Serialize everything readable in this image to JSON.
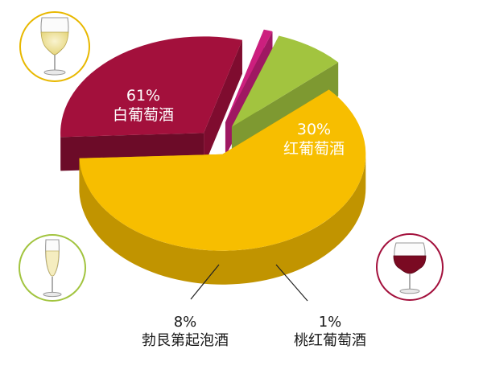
{
  "chart_data": {
    "type": "pie",
    "style": "3d-exploded",
    "slices": [
      {
        "label": "白葡萄酒",
        "value": 61,
        "display": "61%",
        "color": "#f7be00",
        "icon": "white-wine-glass-icon"
      },
      {
        "label": "红葡萄酒",
        "value": 30,
        "display": "30%",
        "color": "#a3103c",
        "icon": "red-wine-glass-icon"
      },
      {
        "label": "桃红葡萄酒",
        "value": 1,
        "display": "1%",
        "color": "#cc1f7e",
        "icon": null
      },
      {
        "label": "勃艮第起泡酒",
        "value": 8,
        "display": "8%",
        "color": "#a2c43f",
        "icon": "sparkling-wine-glass-icon"
      }
    ],
    "title": "",
    "legend": "none"
  }
}
